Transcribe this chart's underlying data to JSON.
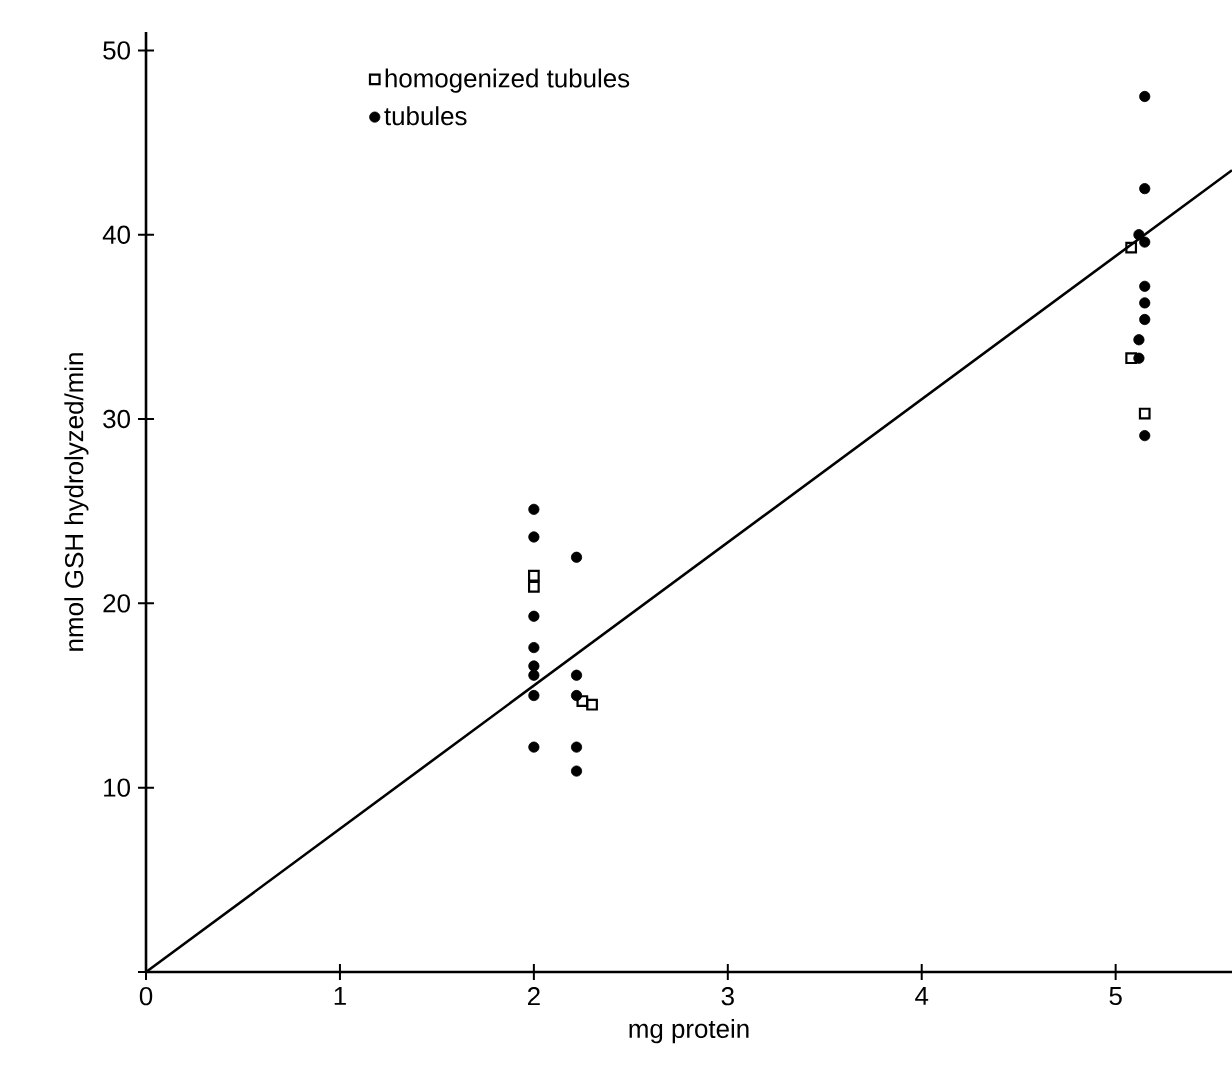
{
  "chart_data": {
    "type": "scatter",
    "xlabel": "mg protein",
    "ylabel": "nmol GSH hydrolyzed/min",
    "xlim": [
      0,
      5.6
    ],
    "ylim": [
      0,
      51
    ],
    "xticks": [
      0,
      1,
      2,
      3,
      4,
      5
    ],
    "yticks": [
      {
        "value": 0,
        "label": null
      },
      10,
      20,
      30,
      40,
      50
    ],
    "legend": "top left",
    "grid": false,
    "series": [
      {
        "name": "homogenized tubules",
        "color": "#000000",
        "marker": "square",
        "x": [
          2.0,
          2.0,
          2.25,
          2.3,
          5.08,
          5.08,
          5.15
        ],
        "values": [
          21.5,
          20.9,
          14.7,
          14.5,
          39.3,
          33.3,
          30.3
        ]
      },
      {
        "name": "tubules",
        "color": "#000000",
        "marker": "circle",
        "x": [
          2.0,
          2.0,
          2.0,
          2.0,
          2.0,
          2.0,
          2.0,
          2.0,
          2.22,
          2.22,
          2.22,
          2.22,
          2.22,
          5.15,
          5.15,
          5.12,
          5.15,
          5.15,
          5.15,
          5.15,
          5.12,
          5.12,
          5.15
        ],
        "values": [
          25.1,
          23.6,
          19.3,
          17.6,
          16.6,
          16.1,
          15.0,
          12.2,
          22.5,
          16.1,
          15.0,
          12.2,
          10.9,
          47.5,
          42.5,
          40.0,
          39.6,
          37.2,
          36.3,
          35.4,
          34.3,
          33.3,
          29.1
        ]
      },
      {
        "type": "line",
        "color": "#000000",
        "x": [
          0,
          5.6
        ],
        "values": [
          0,
          43.5
        ]
      }
    ]
  }
}
